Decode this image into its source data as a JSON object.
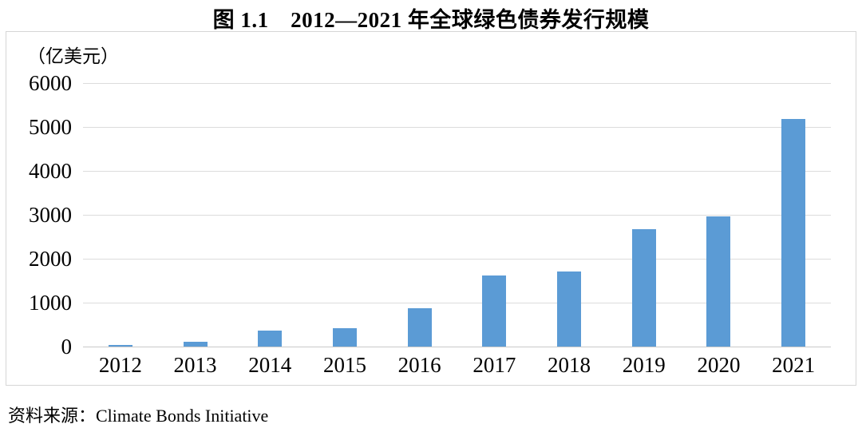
{
  "figure": {
    "title": "图 1.1　2012—2021 年全球绿色债券发行规模",
    "source_caption": "资料来源：Climate Bonds Initiative"
  },
  "chart_data": {
    "type": "bar",
    "title": "图 1.1　2012—2021 年全球绿色债券发行规模",
    "unit_label": "（亿美元）",
    "xlabel": "",
    "ylabel": "（亿美元）",
    "categories": [
      "2012",
      "2013",
      "2014",
      "2015",
      "2016",
      "2017",
      "2018",
      "2019",
      "2020",
      "2021"
    ],
    "values": [
      31,
      110,
      366,
      418,
      872,
      1621,
      1714,
      2668,
      2970,
      5174
    ],
    "ylim": [
      0,
      6000
    ],
    "yticks": [
      0,
      1000,
      2000,
      3000,
      4000,
      5000,
      6000
    ],
    "grid": true,
    "legend": "none",
    "bar_color": "#5B9BD5",
    "gridline_color": "#dcdcdc",
    "source": "资料来源：Climate Bonds Initiative"
  }
}
